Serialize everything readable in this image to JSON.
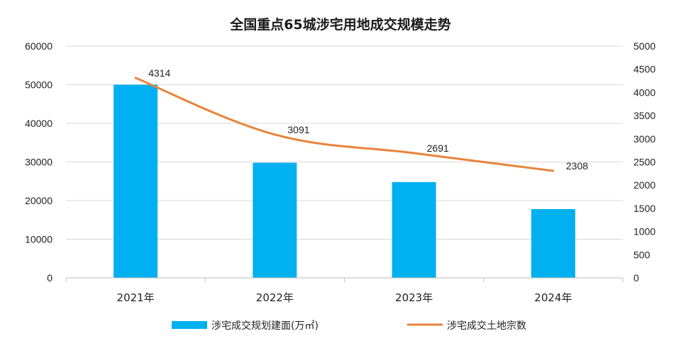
{
  "chart_data": {
    "type": "bar+line",
    "title": "全国重点65城涉宅用地成交规模走势",
    "categories": [
      "2021年",
      "2022年",
      "2023年",
      "2024年"
    ],
    "series": [
      {
        "name": "涉宅成交规划建面(万㎡)",
        "type": "bar",
        "axis": "left",
        "color": "#00B0F0",
        "values": [
          50000,
          29800,
          24800,
          17800
        ]
      },
      {
        "name": "涉宅成交土地宗数",
        "type": "line",
        "axis": "right",
        "color": "#E8833A",
        "values": [
          4314,
          3091,
          2691,
          2308
        ],
        "data_labels": [
          "4314",
          "3091",
          "2691",
          "2308"
        ]
      }
    ],
    "y_left": {
      "min": 0,
      "max": 60000,
      "step": 10000,
      "ticks": [
        "0",
        "10000",
        "20000",
        "30000",
        "40000",
        "50000",
        "60000"
      ]
    },
    "y_right": {
      "min": 0,
      "max": 5000,
      "step": 500,
      "ticks": [
        "0",
        "500",
        "1000",
        "1500",
        "2000",
        "2500",
        "3000",
        "3500",
        "4000",
        "4500",
        "5000"
      ]
    },
    "grid": true,
    "legend_position": "bottom"
  }
}
